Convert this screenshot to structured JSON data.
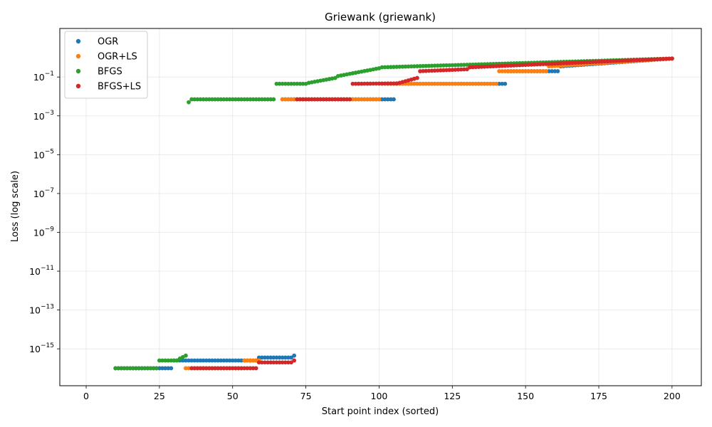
{
  "chart_data": {
    "type": "scatter",
    "title": "Griewank (griewank)",
    "xlabel": "Start point index (sorted)",
    "ylabel": "Loss (log scale)",
    "xlim": [
      -9,
      210
    ],
    "ylim_log10": [
      -16.9,
      1.5
    ],
    "y_scale": "log",
    "grid": true,
    "legend_position": "upper-left",
    "x_ticks": [
      0,
      25,
      50,
      75,
      100,
      125,
      150,
      175,
      200
    ],
    "x_tick_labels": [
      "0",
      "25",
      "50",
      "75",
      "100",
      "125",
      "150",
      "175",
      "200"
    ],
    "y_ticks_log10": [
      -15,
      -13,
      -11,
      -9,
      -7,
      -5,
      -3,
      -1
    ],
    "y_tick_bases": [
      "10",
      "10",
      "10",
      "10",
      "10",
      "10",
      "10",
      "10"
    ],
    "y_tick_exponents": [
      "−15",
      "−13",
      "−11",
      "−9",
      "−7",
      "−5",
      "−3",
      "−1"
    ],
    "series": [
      {
        "name": "OGR",
        "color": "#1f77b4",
        "segments": [
          {
            "x_start": 10,
            "x_end": 29,
            "log10_start": -16.0,
            "log10_end": -16.0
          },
          {
            "x_start": 30,
            "x_end": 58,
            "log10_start": -15.6,
            "log10_end": -15.6
          },
          {
            "x_start": 59,
            "x_end": 70,
            "log10_start": -15.45,
            "log10_end": -15.45
          },
          {
            "x_start": 71,
            "x_end": 71,
            "log10_start": -15.35,
            "log10_end": -15.35
          },
          {
            "x_start": 67,
            "x_end": 105,
            "log10_start": -2.15,
            "log10_end": -2.15
          },
          {
            "x_start": 106,
            "x_end": 143,
            "log10_start": -1.35,
            "log10_end": -1.35
          },
          {
            "x_start": 144,
            "x_end": 161,
            "log10_start": -0.7,
            "log10_end": -0.7
          },
          {
            "x_start": 162,
            "x_end": 200,
            "log10_start": -0.45,
            "log10_end": -0.05
          }
        ]
      },
      {
        "name": "OGR+LS",
        "color": "#ff7f0e",
        "segments": [
          {
            "x_start": 34,
            "x_end": 53,
            "log10_start": -16.0,
            "log10_end": -16.0
          },
          {
            "x_start": 54,
            "x_end": 59,
            "log10_start": -15.6,
            "log10_end": -15.6
          },
          {
            "x_start": 67,
            "x_end": 100,
            "log10_start": -2.15,
            "log10_end": -2.15
          },
          {
            "x_start": 101,
            "x_end": 140,
            "log10_start": -1.35,
            "log10_end": -1.35
          },
          {
            "x_start": 141,
            "x_end": 157,
            "log10_start": -0.7,
            "log10_end": -0.7
          },
          {
            "x_start": 158,
            "x_end": 200,
            "log10_start": -0.45,
            "log10_end": -0.05
          }
        ]
      },
      {
        "name": "BFGS",
        "color": "#2ca02c",
        "segments": [
          {
            "x_start": 10,
            "x_end": 24,
            "log10_start": -16.0,
            "log10_end": -16.0
          },
          {
            "x_start": 25,
            "x_end": 31,
            "log10_start": -15.6,
            "log10_end": -15.6
          },
          {
            "x_start": 32,
            "x_end": 34,
            "log10_start": -15.5,
            "log10_end": -15.35
          },
          {
            "x_start": 35,
            "x_end": 35,
            "log10_start": -2.3,
            "log10_end": -2.3
          },
          {
            "x_start": 36,
            "x_end": 64,
            "log10_start": -2.15,
            "log10_end": -2.15
          },
          {
            "x_start": 65,
            "x_end": 75,
            "log10_start": -1.35,
            "log10_end": -1.35
          },
          {
            "x_start": 76,
            "x_end": 85,
            "log10_start": -1.3,
            "log10_end": -1.05
          },
          {
            "x_start": 86,
            "x_end": 100,
            "log10_start": -0.95,
            "log10_end": -0.55
          },
          {
            "x_start": 101,
            "x_end": 200,
            "log10_start": -0.5,
            "log10_end": -0.05
          }
        ]
      },
      {
        "name": "BFGS+LS",
        "color": "#d62728",
        "segments": [
          {
            "x_start": 36,
            "x_end": 58,
            "log10_start": -16.0,
            "log10_end": -16.0
          },
          {
            "x_start": 59,
            "x_end": 70,
            "log10_start": -15.7,
            "log10_end": -15.7
          },
          {
            "x_start": 71,
            "x_end": 71,
            "log10_start": -15.6,
            "log10_end": -15.6
          },
          {
            "x_start": 72,
            "x_end": 90,
            "log10_start": -2.15,
            "log10_end": -2.15
          },
          {
            "x_start": 91,
            "x_end": 106,
            "log10_start": -1.35,
            "log10_end": -1.33
          },
          {
            "x_start": 107,
            "x_end": 113,
            "log10_start": -1.3,
            "log10_end": -1.05
          },
          {
            "x_start": 114,
            "x_end": 130,
            "log10_start": -0.7,
            "log10_end": -0.6
          },
          {
            "x_start": 131,
            "x_end": 200,
            "log10_start": -0.5,
            "log10_end": -0.05
          }
        ]
      }
    ]
  }
}
